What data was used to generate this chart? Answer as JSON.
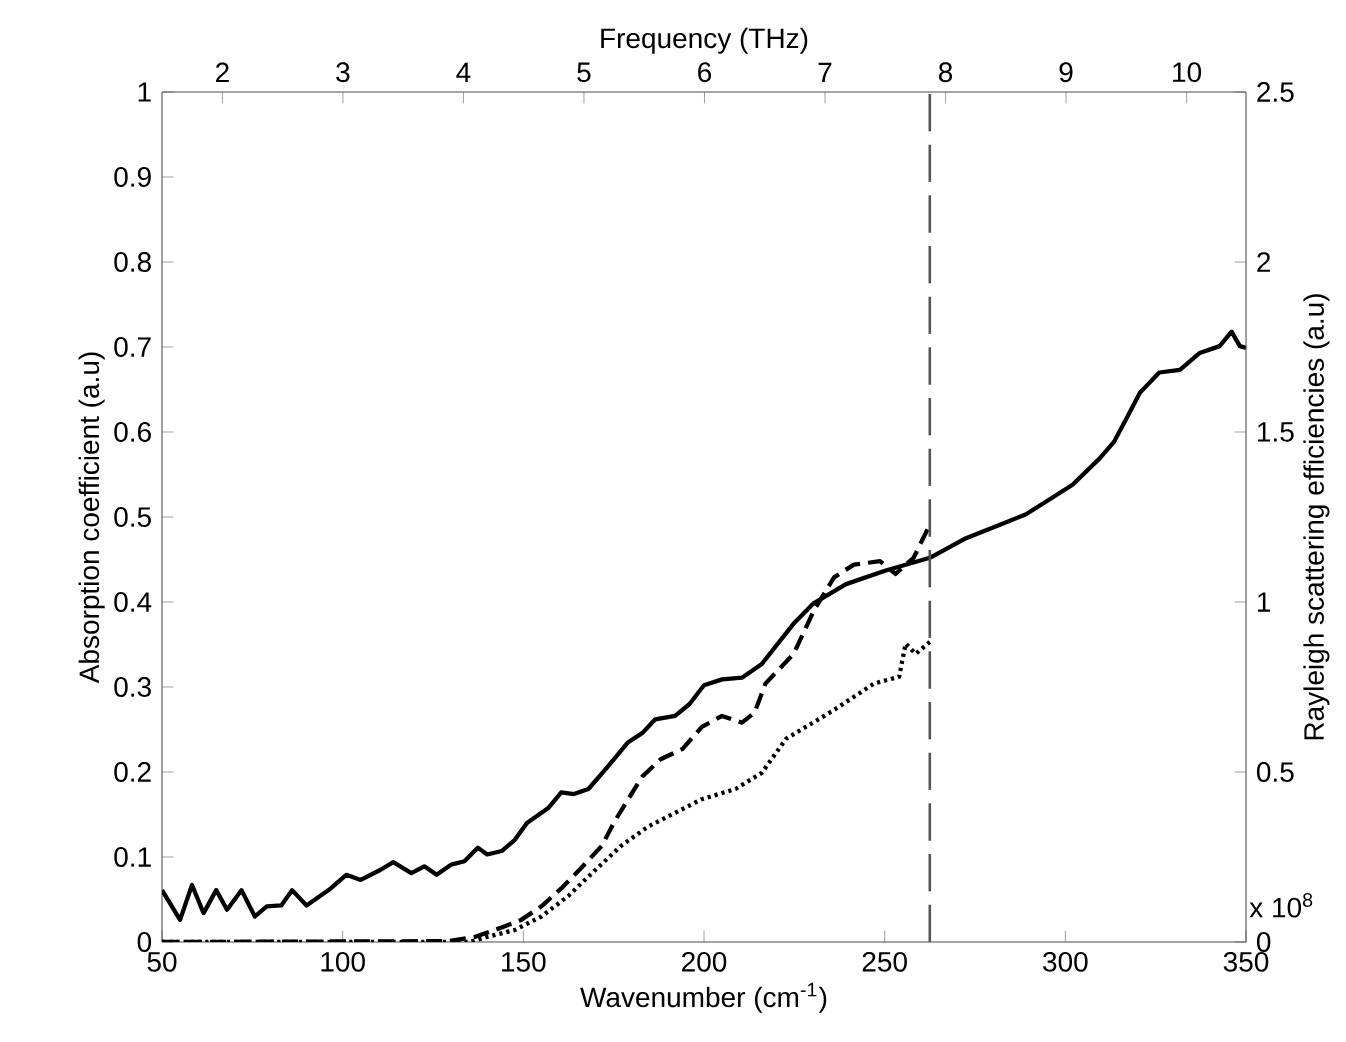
{
  "chart_data": {
    "type": "line",
    "xlabel": "Wavenumber (cm$^{-1}$)",
    "ylabel": "Absorption coefficient (a.u)",
    "y2label": "Rayleigh scattering efficiencies (a.u)",
    "x2label": "Frequency (THz)",
    "annotations": [
      "x 10$^{8}$"
    ],
    "xlim": [
      50,
      350
    ],
    "xticks": [
      50,
      100,
      150,
      200,
      250,
      300,
      350
    ],
    "ylim": [
      0,
      1
    ],
    "yticks": [
      0,
      0.1,
      0.2,
      0.3,
      0.4,
      0.5,
      0.6,
      0.7,
      0.8,
      0.9,
      1
    ],
    "y2lim": [
      0,
      2.5
    ],
    "y2ticks": [
      0,
      0.5,
      1,
      1.5,
      2,
      2.5
    ],
    "x2lim": [
      1.499,
      10.493
    ],
    "x2ticks": [
      2,
      3,
      4,
      5,
      6,
      7,
      8,
      9,
      10
    ],
    "ref_lines": [
      {
        "axis": "x",
        "value": 262.5,
        "color": "#555555",
        "line_style": "dashed"
      }
    ],
    "series": [
      {
        "color": "#000000",
        "line_style": "solid",
        "x": [
          50,
          55,
          58.3,
          61.5,
          65,
          68,
          72,
          75.7,
          79,
          83,
          86,
          90,
          96.7,
          101,
          105,
          110.5,
          114,
          119,
          122.6,
          126,
          130,
          133.7,
          137.4,
          140,
          144,
          147.6,
          151,
          157,
          160.5,
          164,
          168,
          173.5,
          179,
          183,
          186.5,
          192,
          196,
          200,
          205,
          210.5,
          216,
          224.7,
          230.2,
          239.3,
          250.3,
          262.5,
          272.5,
          281.9,
          289,
          294.6,
          302,
          309.5,
          313.4,
          316.8,
          320.6,
          326,
          331.7,
          337.2,
          342.7,
          346,
          348.3,
          350
        ],
        "values": [
          0.061,
          0.026,
          0.067,
          0.034,
          0.061,
          0.038,
          0.061,
          0.03,
          0.042,
          0.043,
          0.061,
          0.043,
          0.063,
          0.079,
          0.073,
          0.085,
          0.094,
          0.081,
          0.089,
          0.079,
          0.091,
          0.095,
          0.111,
          0.103,
          0.107,
          0.12,
          0.14,
          0.158,
          0.176,
          0.174,
          0.18,
          0.207,
          0.235,
          0.246,
          0.262,
          0.266,
          0.28,
          0.302,
          0.309,
          0.311,
          0.327,
          0.374,
          0.398,
          0.421,
          0.437,
          0.452,
          0.475,
          0.491,
          0.503,
          0.518,
          0.538,
          0.569,
          0.588,
          0.615,
          0.646,
          0.67,
          0.673,
          0.693,
          0.701,
          0.718,
          0.701,
          0.699
        ]
      },
      {
        "color": "#000000",
        "line_style": "dashed",
        "x": [
          50,
          129,
          136.5,
          144,
          149.4,
          155,
          160.5,
          166,
          171.7,
          175,
          179,
          183,
          188,
          194,
          199.4,
          205,
          210.5,
          214,
          217,
          224.8,
          230.4,
          236,
          241.5,
          248.7,
          253,
          258,
          262.5
        ],
        "values": [
          0,
          0.001,
          0.006,
          0.017,
          0.026,
          0.042,
          0.063,
          0.087,
          0.113,
          0.14,
          0.168,
          0.195,
          0.215,
          0.227,
          0.253,
          0.266,
          0.258,
          0.27,
          0.304,
          0.339,
          0.39,
          0.429,
          0.444,
          0.448,
          0.433,
          0.452,
          0.491
        ]
      },
      {
        "color": "#000000",
        "line_style": "dotted",
        "x": [
          50,
          135,
          140,
          147.6,
          155,
          162.4,
          170,
          177,
          184.6,
          192,
          199.4,
          208.7,
          216,
          222.7,
          236,
          247,
          254,
          255.8,
          258.6,
          262.5
        ],
        "values": [
          0,
          0,
          0.006,
          0.014,
          0.03,
          0.054,
          0.085,
          0.113,
          0.136,
          0.152,
          0.168,
          0.18,
          0.199,
          0.239,
          0.273,
          0.304,
          0.312,
          0.351,
          0.339,
          0.353
        ]
      }
    ]
  }
}
